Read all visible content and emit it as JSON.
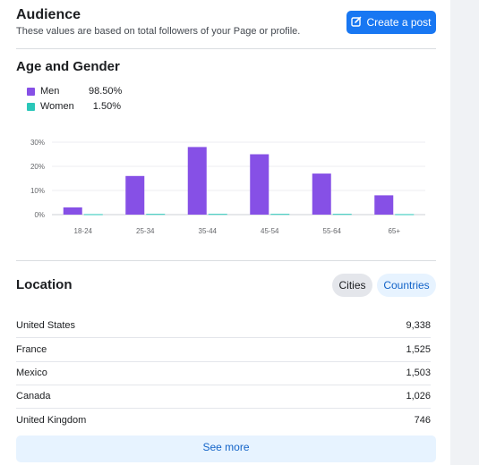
{
  "audience": {
    "title": "Audience",
    "subtitle": "These values are based on total followers of your Page or profile.",
    "create_post_label": "Create a post"
  },
  "age_gender": {
    "title": "Age and Gender",
    "legend": [
      {
        "name": "Men",
        "percent": "98.50%",
        "color": "#8650e6"
      },
      {
        "name": "Women",
        "percent": "1.50%",
        "color": "#2bc7b9"
      }
    ]
  },
  "chart_data": {
    "type": "bar",
    "categories": [
      "18-24",
      "25-34",
      "35-44",
      "45-54",
      "55-64",
      "65+"
    ],
    "series": [
      {
        "name": "Men",
        "values": [
          3,
          16,
          28,
          25,
          17,
          8
        ],
        "color": "#8650e6"
      },
      {
        "name": "Women",
        "values": [
          0.2,
          0.3,
          0.3,
          0.3,
          0.3,
          0.2
        ],
        "color": "#2bc7b9"
      }
    ],
    "y_ticks": [
      "0%",
      "10%",
      "20%",
      "30%"
    ],
    "ylim": [
      0,
      30
    ],
    "grid": true
  },
  "location": {
    "title": "Location",
    "tabs": [
      {
        "label": "Cities",
        "selected": true
      },
      {
        "label": "Countries",
        "selected": false
      }
    ],
    "rows": [
      {
        "name": "United States",
        "value": "9,338"
      },
      {
        "name": "France",
        "value": "1,525"
      },
      {
        "name": "Mexico",
        "value": "1,503"
      },
      {
        "name": "Canada",
        "value": "1,026"
      },
      {
        "name": "United Kingdom",
        "value": "746"
      }
    ],
    "see_more_label": "See more"
  }
}
